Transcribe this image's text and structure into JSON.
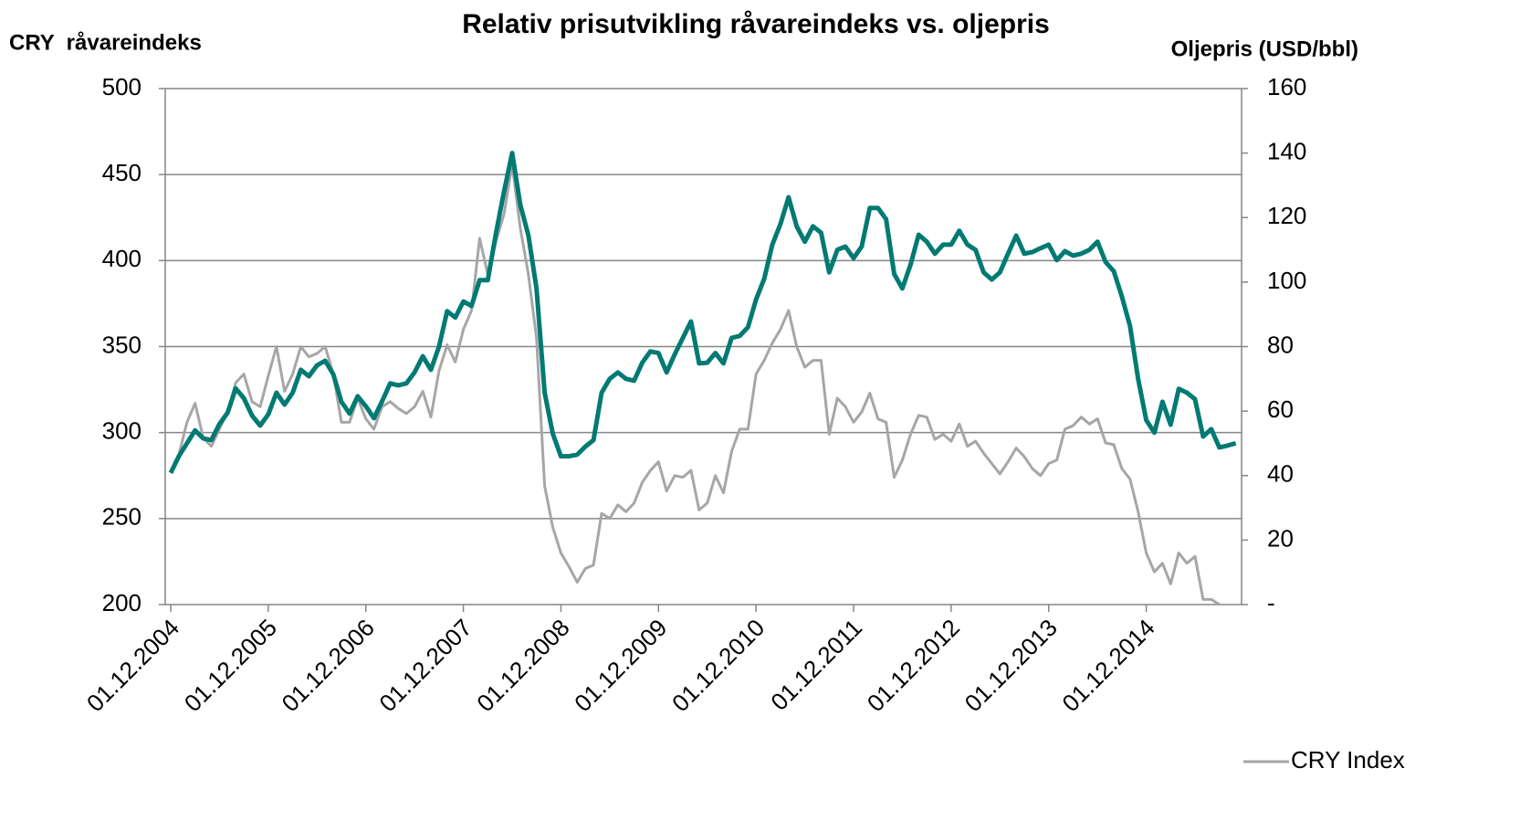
{
  "chart_data": {
    "type": "line",
    "title": "Relativ prisutvikling råvareindeks vs. oljepris",
    "ylabel": "CRY  råvareindeks",
    "y2label": "Oljepris (USD/bbl)",
    "categories": [
      "01.12.2004",
      null,
      null,
      null,
      null,
      null,
      null,
      null,
      null,
      null,
      null,
      null,
      "01.12.2005",
      null,
      null,
      null,
      null,
      null,
      null,
      null,
      null,
      null,
      null,
      null,
      "01.12.2006",
      null,
      null,
      null,
      null,
      null,
      null,
      null,
      null,
      null,
      null,
      null,
      "01.12.2007",
      null,
      null,
      null,
      null,
      null,
      null,
      null,
      null,
      null,
      null,
      null,
      "01.12.2008",
      null,
      null,
      null,
      null,
      null,
      null,
      null,
      null,
      null,
      null,
      null,
      "01.12.2009",
      null,
      null,
      null,
      null,
      null,
      null,
      null,
      null,
      null,
      null,
      null,
      "01.12.2010",
      null,
      null,
      null,
      null,
      null,
      null,
      null,
      null,
      null,
      null,
      null,
      "01.12.2011",
      null,
      null,
      null,
      null,
      null,
      null,
      null,
      null,
      null,
      null,
      null,
      "01.12.2012",
      null,
      null,
      null,
      null,
      null,
      null,
      null,
      null,
      null,
      null,
      null,
      "01.12.2013",
      null,
      null,
      null,
      null,
      null,
      null,
      null,
      null,
      null,
      null,
      null,
      "01.12.2014",
      null,
      null,
      null,
      null,
      null,
      null,
      null,
      null,
      null,
      null,
      null
    ],
    "series": [
      {
        "name": "CRY Index",
        "color": "#a6a6a6",
        "axis": "y",
        "values": [
          277,
          287,
          306,
          317,
          297,
          292,
          302,
          312,
          329,
          334,
          318,
          315,
          333,
          350,
          324,
          334,
          350,
          344,
          346,
          350,
          334,
          306,
          306,
          320,
          308,
          302,
          315,
          318,
          314,
          311,
          315,
          324,
          309,
          336,
          351,
          341,
          360,
          371,
          413,
          392,
          411,
          427,
          456,
          419,
          392,
          355,
          269,
          245,
          230,
          222,
          213,
          221,
          223,
          253,
          250,
          258,
          254,
          259,
          271,
          278,
          283,
          266,
          275,
          274,
          278,
          255,
          259,
          275,
          265,
          289,
          302,
          302,
          334,
          342,
          352,
          360,
          371,
          350,
          338,
          342,
          342,
          299,
          320,
          315,
          306,
          312,
          323,
          308,
          306,
          274,
          284,
          299,
          310,
          309,
          296,
          299,
          295,
          305,
          292,
          295,
          288,
          282,
          276,
          283,
          291,
          286,
          279,
          275,
          282,
          284,
          302,
          304,
          309,
          305,
          308,
          294,
          293,
          279,
          273,
          254,
          230,
          219,
          224,
          212,
          230,
          224,
          228,
          203,
          203,
          200,
          null,
          null
        ]
      },
      {
        "color": "#007a73",
        "axis": "y2",
        "values": [
          40.8,
          46,
          50,
          54,
          51.5,
          51,
          56,
          59.5,
          67,
          64,
          58.6,
          55.5,
          59,
          65.7,
          62,
          65.7,
          72.8,
          70.8,
          74.2,
          75.6,
          71.4,
          62.9,
          59.2,
          64.6,
          61.5,
          57.8,
          63,
          68.6,
          68,
          68.6,
          72,
          77,
          72.8,
          80,
          91,
          89,
          94,
          92.6,
          100.6,
          100.6,
          115,
          128,
          140,
          124,
          114.5,
          98,
          65.7,
          53,
          46,
          46,
          46.5,
          49,
          51,
          65.7,
          70,
          72,
          70,
          69.4,
          75,
          78.5,
          78,
          72,
          77.6,
          82.7,
          87.8,
          74.8,
          75,
          78,
          74.8,
          82.7,
          83.3,
          86,
          94.6,
          101,
          111.6,
          118,
          126.3,
          117.3,
          112.5,
          117.3,
          115.3,
          103,
          110,
          111,
          107.4,
          111,
          123,
          123,
          119.5,
          102.5,
          98,
          105.4,
          114.7,
          112.5,
          108.8,
          111.6,
          111.6,
          115.9,
          111.6,
          110,
          103,
          100.8,
          103,
          108.8,
          114.4,
          108.8,
          109.3,
          110.5,
          111.6,
          106.8,
          109.6,
          108.2,
          108.8,
          110,
          112.5,
          106.2,
          103.4,
          95.5,
          86.4,
          70,
          57.2,
          53.3,
          62.9,
          55.8,
          66.9,
          65.7,
          63.7,
          52.1,
          54.4,
          48.7,
          49.3,
          50
        ]
      }
    ],
    "ylim": [
      200,
      500
    ],
    "yticks": [
      200,
      250,
      300,
      350,
      400,
      450,
      500
    ],
    "y2lim": [
      0,
      160
    ],
    "y2ticks": [
      {
        "value": 0,
        "label": "-"
      },
      20,
      40,
      60,
      80,
      100,
      120,
      140,
      160
    ],
    "grid": true,
    "legend": "bottom-right"
  }
}
